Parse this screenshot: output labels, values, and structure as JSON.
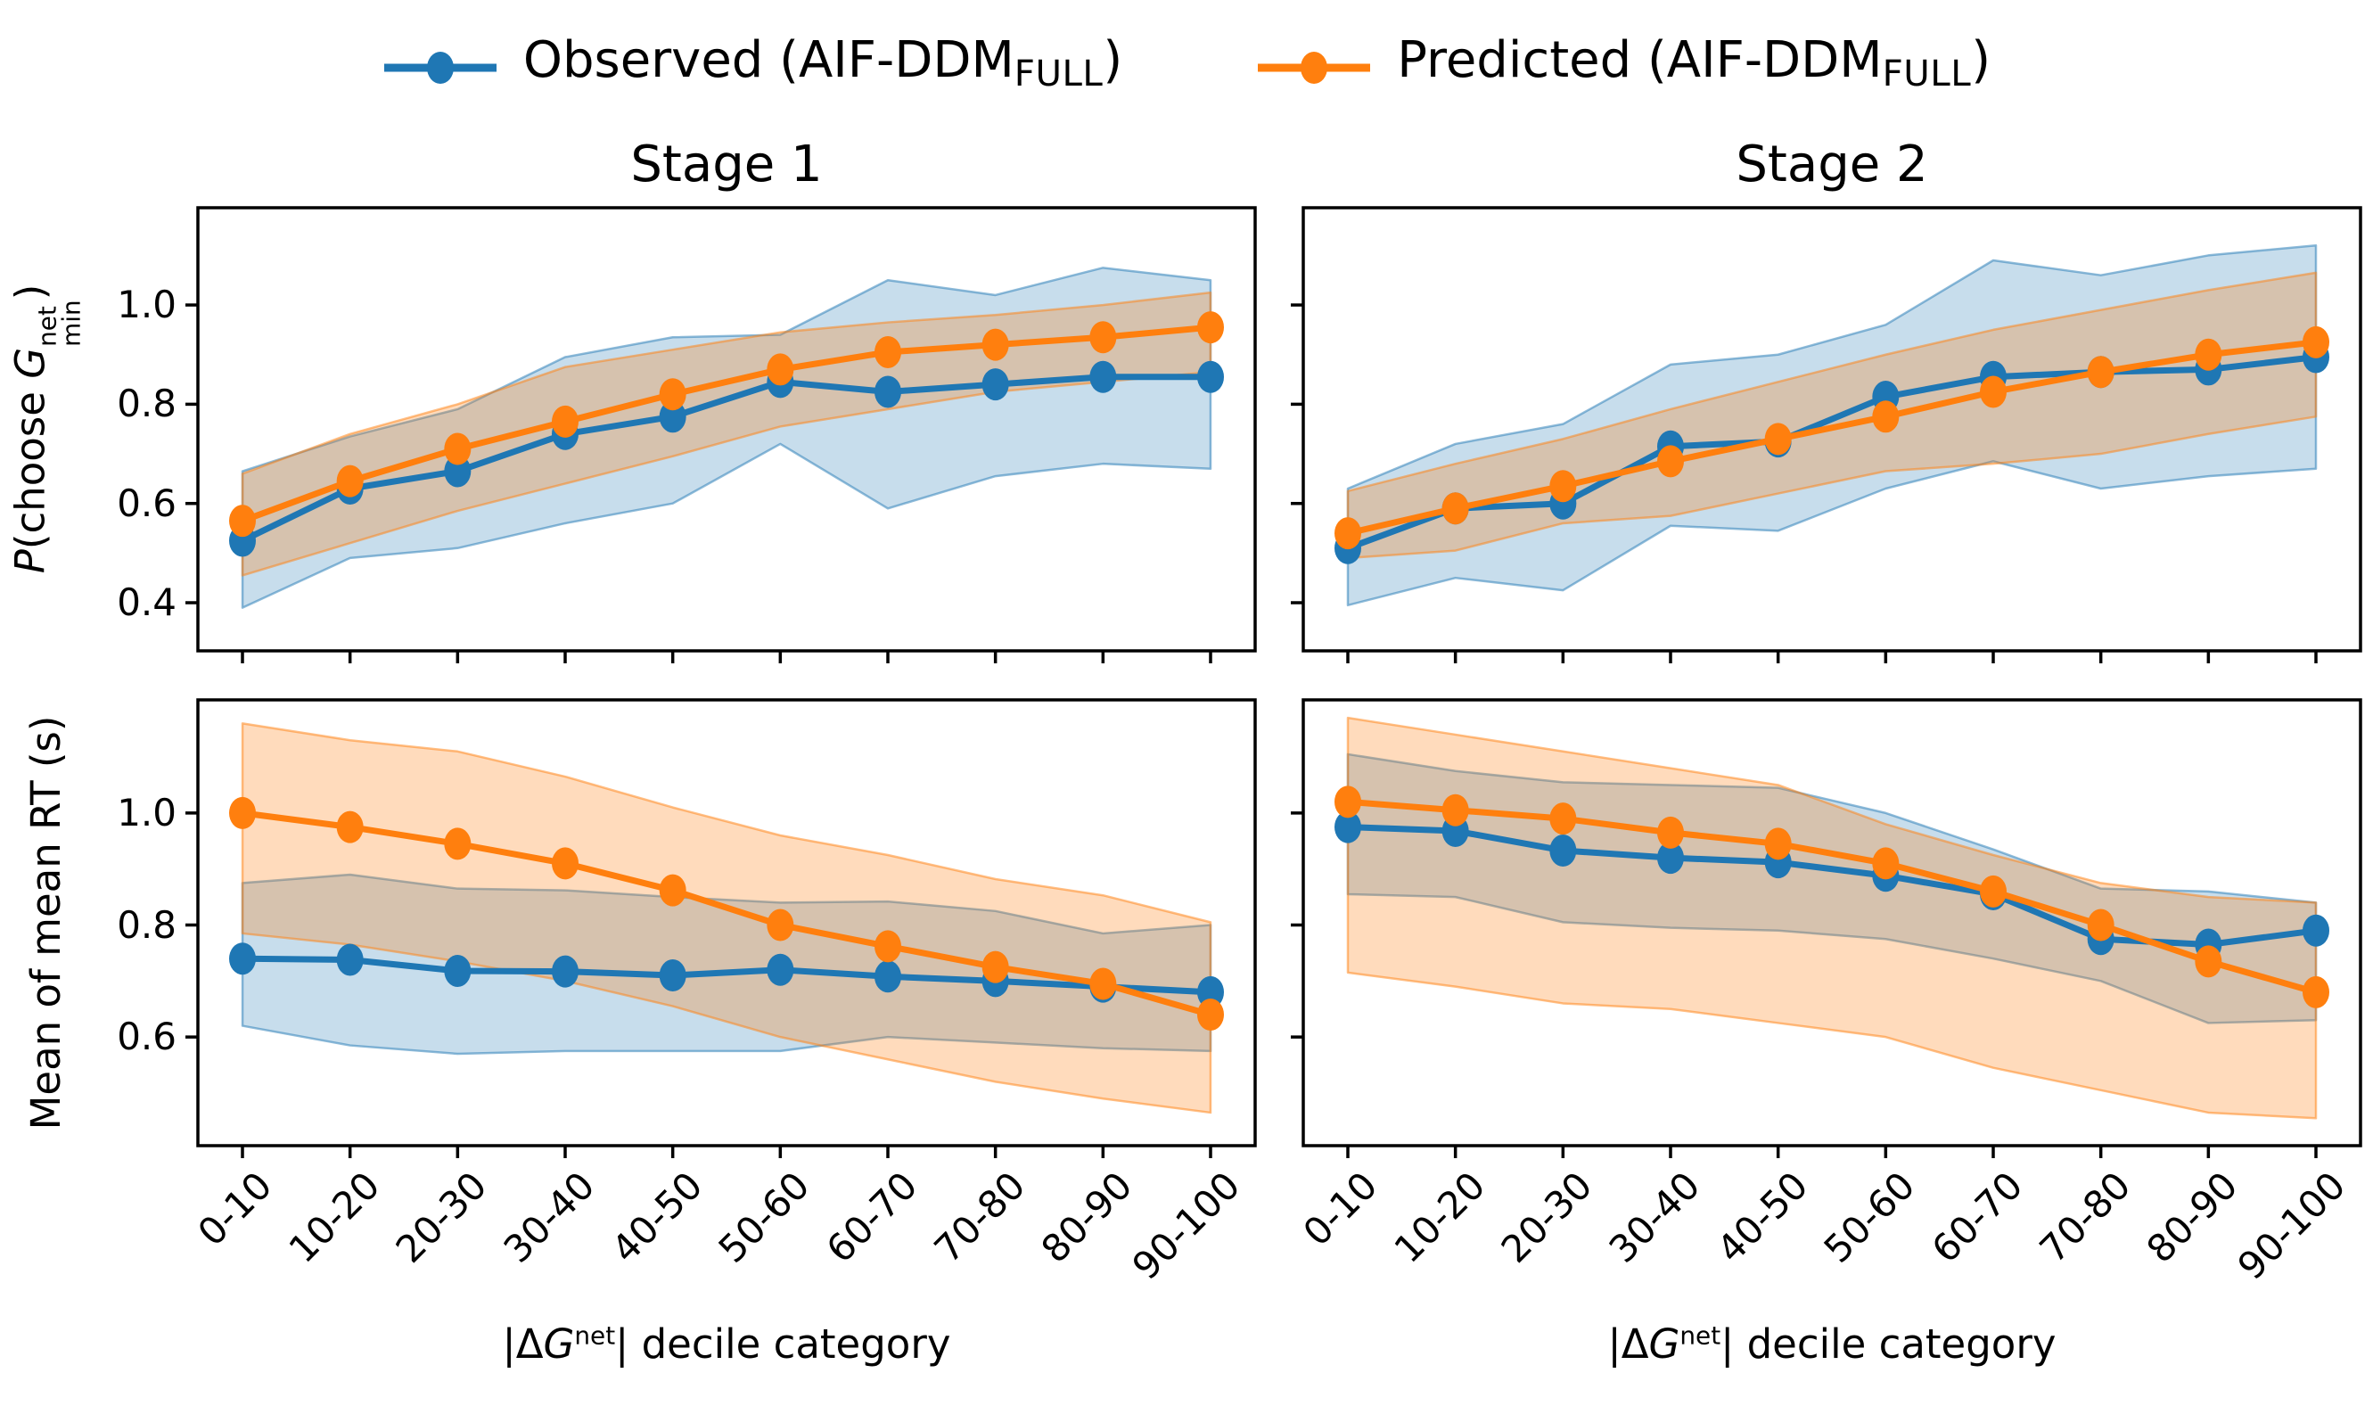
{
  "legend": {
    "observed": {
      "prefix": "Observed (AIF-DDM",
      "subscript": "FULL",
      "suffix": ")"
    },
    "predicted": {
      "prefix": "Predicted (AIF-DDM",
      "subscript": "FULL",
      "suffix": ")"
    }
  },
  "colors": {
    "observed": "#1f77b4",
    "predicted": "#ff7f0e",
    "spine": "#000000",
    "text": "#000000",
    "background": "#ffffff"
  },
  "labels": {
    "ylabel_top": {
      "p": "P",
      "pre": "(choose ",
      "sym": "G",
      "sup": "net",
      "sub": "min",
      "post": ")"
    },
    "ylabel_bottom": {
      "text": "Mean of mean RT (s)"
    },
    "xlabel": {
      "pre": "|Δ",
      "sym": "G",
      "sup": "net",
      "post": "| decile category"
    }
  },
  "chart_data": [
    {
      "id": "stage1-choice",
      "type": "line",
      "title": "Stage 1",
      "ylabel": "P(choose G^net_min)",
      "xlabel": "",
      "categories": [
        "0-10",
        "10-20",
        "20-30",
        "30-40",
        "40-50",
        "50-60",
        "60-70",
        "70-80",
        "80-90",
        "90-100"
      ],
      "ylim": [
        0.303,
        1.196
      ],
      "yticks": [
        0.4,
        0.6,
        0.8,
        1.0
      ],
      "ytick_labels": [
        "0.4",
        "0.6",
        "0.8",
        "1.0"
      ],
      "show_ytick_labels": true,
      "show_xtick_labels": false,
      "legend_position": "upper center (figure)",
      "grid": false,
      "series": [
        {
          "name": "Observed (AIF-DDM_FULL)",
          "color": "#1f77b4",
          "band_alpha": 0.25,
          "values": [
            0.525,
            0.63,
            0.665,
            0.74,
            0.775,
            0.845,
            0.825,
            0.84,
            0.855,
            0.855
          ],
          "band_lower": [
            0.39,
            0.49,
            0.51,
            0.56,
            0.6,
            0.72,
            0.59,
            0.655,
            0.68,
            0.67
          ],
          "band_upper": [
            0.665,
            0.735,
            0.79,
            0.895,
            0.935,
            0.94,
            1.05,
            1.02,
            1.075,
            1.05
          ]
        },
        {
          "name": "Predicted (AIF-DDM_FULL)",
          "color": "#ff7f0e",
          "band_alpha": 0.28,
          "values": [
            0.565,
            0.645,
            0.71,
            0.765,
            0.82,
            0.87,
            0.905,
            0.92,
            0.935,
            0.955
          ],
          "band_lower": [
            0.455,
            0.52,
            0.585,
            0.64,
            0.695,
            0.755,
            0.79,
            0.825,
            0.845,
            0.865
          ],
          "band_upper": [
            0.66,
            0.74,
            0.8,
            0.875,
            0.91,
            0.945,
            0.965,
            0.98,
            1.0,
            1.025
          ]
        }
      ]
    },
    {
      "id": "stage2-choice",
      "type": "line",
      "title": "Stage 2",
      "ylabel": "P(choose G^net_min)",
      "xlabel": "",
      "categories": [
        "0-10",
        "10-20",
        "20-30",
        "30-40",
        "40-50",
        "50-60",
        "60-70",
        "70-80",
        "80-90",
        "90-100"
      ],
      "ylim": [
        0.303,
        1.196
      ],
      "yticks": [
        0.4,
        0.6,
        0.8,
        1.0
      ],
      "ytick_labels": [
        "0.4",
        "0.6",
        "0.8",
        "1.0"
      ],
      "show_ytick_labels": false,
      "show_xtick_labels": false,
      "grid": false,
      "series": [
        {
          "name": "Observed (AIF-DDM_FULL)",
          "color": "#1f77b4",
          "band_alpha": 0.25,
          "values": [
            0.51,
            0.59,
            0.6,
            0.715,
            0.725,
            0.815,
            0.855,
            0.865,
            0.87,
            0.895
          ],
          "band_lower": [
            0.395,
            0.45,
            0.425,
            0.555,
            0.545,
            0.63,
            0.685,
            0.63,
            0.655,
            0.67
          ],
          "band_upper": [
            0.63,
            0.72,
            0.76,
            0.88,
            0.9,
            0.96,
            1.09,
            1.06,
            1.1,
            1.12
          ]
        },
        {
          "name": "Predicted (AIF-DDM_FULL)",
          "color": "#ff7f0e",
          "band_alpha": 0.28,
          "values": [
            0.54,
            0.59,
            0.635,
            0.685,
            0.73,
            0.775,
            0.825,
            0.865,
            0.9,
            0.925
          ],
          "band_lower": [
            0.49,
            0.505,
            0.56,
            0.575,
            0.62,
            0.665,
            0.68,
            0.7,
            0.74,
            0.775
          ],
          "band_upper": [
            0.625,
            0.68,
            0.73,
            0.79,
            0.845,
            0.9,
            0.95,
            0.99,
            1.03,
            1.065
          ]
        }
      ]
    },
    {
      "id": "stage1-rt",
      "type": "line",
      "title": "",
      "ylabel": "Mean of mean RT (s)",
      "xlabel": "|ΔG^net| decile category",
      "categories": [
        "0-10",
        "10-20",
        "20-30",
        "30-40",
        "40-50",
        "50-60",
        "60-70",
        "70-80",
        "80-90",
        "90-100"
      ],
      "ylim": [
        0.406,
        1.202
      ],
      "yticks": [
        0.6,
        0.8,
        1.0
      ],
      "ytick_labels": [
        "0.6",
        "0.8",
        "1.0"
      ],
      "show_ytick_labels": true,
      "show_xtick_labels": true,
      "grid": false,
      "series": [
        {
          "name": "Observed (AIF-DDM_FULL)",
          "color": "#1f77b4",
          "band_alpha": 0.25,
          "values": [
            0.74,
            0.738,
            0.718,
            0.717,
            0.71,
            0.72,
            0.708,
            0.7,
            0.69,
            0.68
          ],
          "band_lower": [
            0.62,
            0.585,
            0.57,
            0.575,
            0.575,
            0.575,
            0.6,
            0.59,
            0.58,
            0.575
          ],
          "band_upper": [
            0.875,
            0.89,
            0.865,
            0.862,
            0.85,
            0.84,
            0.842,
            0.825,
            0.785,
            0.8
          ]
        },
        {
          "name": "Predicted (AIF-DDM_FULL)",
          "color": "#ff7f0e",
          "band_alpha": 0.28,
          "values": [
            1.0,
            0.975,
            0.945,
            0.91,
            0.862,
            0.8,
            0.762,
            0.725,
            0.695,
            0.64
          ],
          "band_lower": [
            0.785,
            0.765,
            0.735,
            0.7,
            0.655,
            0.6,
            0.56,
            0.52,
            0.49,
            0.465
          ],
          "band_upper": [
            1.16,
            1.13,
            1.11,
            1.065,
            1.01,
            0.96,
            0.925,
            0.882,
            0.853,
            0.805
          ]
        }
      ]
    },
    {
      "id": "stage2-rt",
      "type": "line",
      "title": "",
      "ylabel": "Mean of mean RT (s)",
      "xlabel": "|ΔG^net| decile category",
      "categories": [
        "0-10",
        "10-20",
        "20-30",
        "30-40",
        "40-50",
        "50-60",
        "60-70",
        "70-80",
        "80-90",
        "90-100"
      ],
      "ylim": [
        0.406,
        1.202
      ],
      "yticks": [
        0.6,
        0.8,
        1.0
      ],
      "ytick_labels": [
        "0.6",
        "0.8",
        "1.0"
      ],
      "show_ytick_labels": false,
      "show_xtick_labels": true,
      "grid": false,
      "series": [
        {
          "name": "Observed (AIF-DDM_FULL)",
          "color": "#1f77b4",
          "band_alpha": 0.25,
          "values": [
            0.975,
            0.968,
            0.933,
            0.92,
            0.912,
            0.888,
            0.855,
            0.775,
            0.765,
            0.79
          ],
          "band_lower": [
            0.855,
            0.85,
            0.805,
            0.795,
            0.79,
            0.775,
            0.74,
            0.7,
            0.625,
            0.63
          ],
          "band_upper": [
            1.105,
            1.075,
            1.055,
            1.05,
            1.045,
            1.0,
            0.935,
            0.865,
            0.86,
            0.84
          ]
        },
        {
          "name": "Predicted (AIF-DDM_FULL)",
          "color": "#ff7f0e",
          "band_alpha": 0.28,
          "values": [
            1.02,
            1.005,
            0.99,
            0.965,
            0.945,
            0.91,
            0.86,
            0.8,
            0.735,
            0.68
          ],
          "band_lower": [
            0.715,
            0.69,
            0.66,
            0.65,
            0.625,
            0.6,
            0.545,
            0.505,
            0.465,
            0.455
          ],
          "band_upper": [
            1.17,
            1.14,
            1.11,
            1.08,
            1.05,
            0.98,
            0.925,
            0.875,
            0.85,
            0.84
          ]
        }
      ]
    }
  ]
}
